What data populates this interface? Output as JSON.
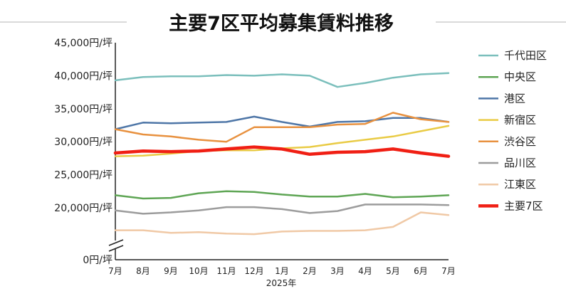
{
  "chart_data": {
    "type": "line",
    "title": "主要7区平均募集賃料推移",
    "x": [
      "7月",
      "8月",
      "9月",
      "10月",
      "11月",
      "12月",
      "1月",
      "2月",
      "3月",
      "4月",
      "5月",
      "6月",
      "7月"
    ],
    "x_group_label": "2025年",
    "y_ticks": [
      "45,000円/坪",
      "40,000円/坪",
      "35,000円/坪",
      "30,000円/坪",
      "25,000円/坪",
      "20,000円/坪",
      "0円/坪"
    ],
    "y_axis_break": true,
    "ylim": [
      0,
      45000
    ],
    "legend_position": "right",
    "series": [
      {
        "name": "千代田区",
        "color": "#7bbfbc",
        "width": 2.5,
        "values": [
          39300,
          39800,
          39900,
          39900,
          40100,
          40000,
          40200,
          40000,
          38300,
          38900,
          39700,
          40200,
          40400
        ]
      },
      {
        "name": "中央区",
        "color": "#5ea554",
        "width": 2.5,
        "values": [
          21900,
          21400,
          21500,
          22200,
          22500,
          22400,
          22000,
          21700,
          21700,
          22100,
          21600,
          21700,
          21900
        ]
      },
      {
        "name": "港区",
        "color": "#4e76a7",
        "width": 2.5,
        "values": [
          31900,
          32900,
          32800,
          32900,
          33000,
          33800,
          33000,
          32300,
          33000,
          33100,
          33600,
          33600,
          33000
        ]
      },
      {
        "name": "新宿区",
        "color": "#e9cb45",
        "width": 2.5,
        "values": [
          27800,
          27900,
          28200,
          28600,
          28700,
          28700,
          29000,
          29200,
          29800,
          30300,
          30800,
          31600,
          32400
        ]
      },
      {
        "name": "渋谷区",
        "color": "#e8913f",
        "width": 2.5,
        "values": [
          31900,
          31100,
          30800,
          30300,
          30000,
          32200,
          32200,
          32200,
          32600,
          32700,
          34400,
          33400,
          33000
        ]
      },
      {
        "name": "品川区",
        "color": "#9c9c9c",
        "width": 2.5,
        "values": [
          19600,
          19100,
          19300,
          19600,
          20100,
          20100,
          19800,
          19200,
          19500,
          20500,
          20500,
          20500,
          20400
        ]
      },
      {
        "name": "江東区",
        "color": "#f0c9a6",
        "width": 2.5,
        "values": [
          16600,
          16600,
          16200,
          16300,
          16100,
          16000,
          16400,
          16500,
          16500,
          16600,
          17100,
          19300,
          18900
        ]
      },
      {
        "name": "主要7区",
        "color": "#f01f14",
        "width": 4.5,
        "values": [
          28300,
          28600,
          28500,
          28600,
          28900,
          29200,
          28900,
          28100,
          28400,
          28500,
          28900,
          28300,
          27800
        ]
      }
    ]
  }
}
